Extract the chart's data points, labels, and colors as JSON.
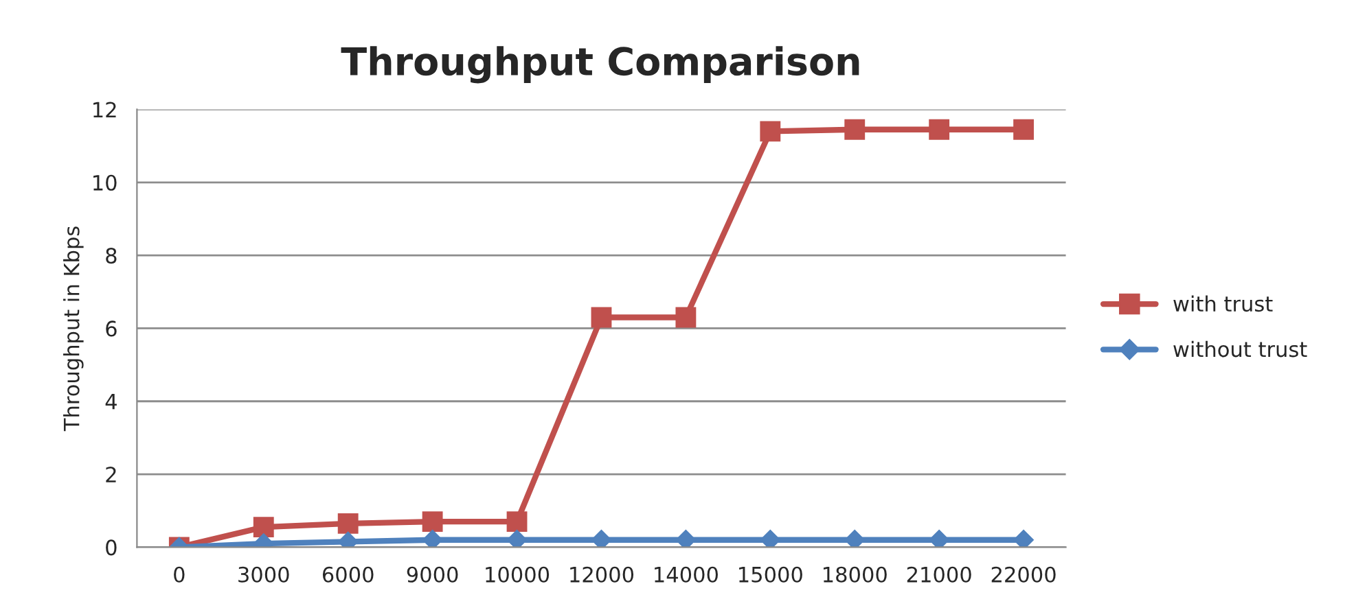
{
  "chart_data": {
    "type": "line",
    "title": "Throughput Comparison",
    "ylabel": "Throughput in Kbps",
    "categories": [
      "0",
      "3000",
      "6000",
      "9000",
      "10000",
      "12000",
      "14000",
      "15000",
      "18000",
      "21000",
      "22000"
    ],
    "series": [
      {
        "name": "with trust",
        "color": "#c0504d",
        "marker": "square",
        "values": [
          0,
          0.55,
          0.65,
          0.7,
          0.7,
          6.3,
          6.3,
          11.4,
          11.45,
          11.45,
          11.45
        ]
      },
      {
        "name": "without trust",
        "color": "#4f81bd",
        "marker": "diamond",
        "values": [
          0,
          0.1,
          0.15,
          0.2,
          0.2,
          0.2,
          0.2,
          0.2,
          0.2,
          0.2,
          0.2
        ]
      }
    ],
    "ylim": [
      0,
      12
    ],
    "yticks": [
      0,
      2,
      4,
      6,
      8,
      10,
      12
    ],
    "grid": "y",
    "legend": "right",
    "line_style": "solid"
  }
}
